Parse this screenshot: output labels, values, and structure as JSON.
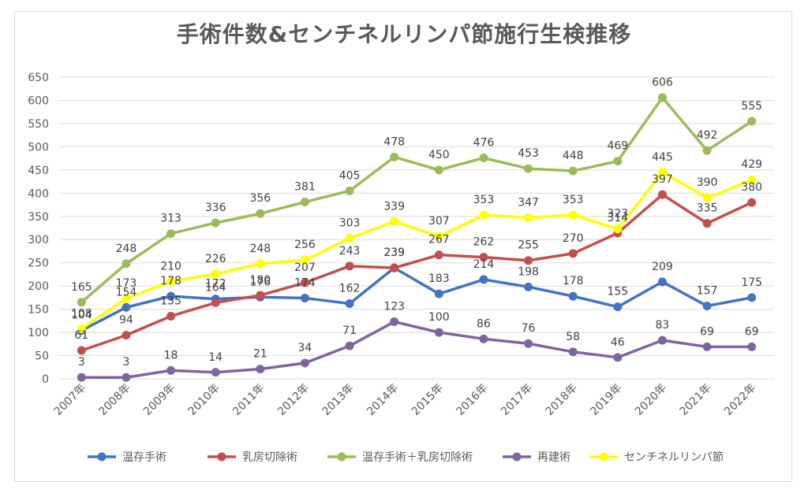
{
  "chart_data": {
    "type": "line",
    "title": "手術件数&センチネルリンパ節施行生検推移",
    "categories": [
      "2007年",
      "2008年",
      "2009年",
      "2010年",
      "2011年",
      "2012年",
      "2013年",
      "2014年",
      "2015年",
      "2016年",
      "2017年",
      "2018年",
      "2019年",
      "2020年",
      "2021年",
      "2022年"
    ],
    "ylim": [
      0,
      650
    ],
    "yticks": [
      0,
      50,
      100,
      150,
      200,
      250,
      300,
      350,
      400,
      450,
      500,
      550,
      600,
      650
    ],
    "grid": true,
    "legend_position": "bottom",
    "series": [
      {
        "name": "温存手術",
        "color": "#4472c4",
        "values": [
          104,
          154,
          178,
          172,
          176,
          174,
          162,
          239,
          183,
          214,
          198,
          178,
          155,
          209,
          157,
          175
        ]
      },
      {
        "name": "乳房切除術",
        "color": "#c0504d",
        "values": [
          61,
          94,
          135,
          164,
          180,
          207,
          243,
          239,
          267,
          262,
          255,
          270,
          314,
          397,
          335,
          380
        ]
      },
      {
        "name": "温存手術＋乳房切除術",
        "color": "#9bbb59",
        "values": [
          165,
          248,
          313,
          336,
          356,
          381,
          405,
          478,
          450,
          476,
          453,
          448,
          469,
          606,
          492,
          555
        ]
      },
      {
        "name": "再建術",
        "color": "#8064a2",
        "values": [
          3,
          3,
          18,
          14,
          21,
          34,
          71,
          123,
          100,
          86,
          76,
          58,
          46,
          83,
          69,
          69
        ]
      },
      {
        "name": "センチネルリンパ節",
        "color": "#ffff00",
        "values": [
          108,
          173,
          210,
          226,
          248,
          256,
          303,
          339,
          307,
          353,
          347,
          353,
          323,
          445,
          390,
          429
        ]
      }
    ]
  }
}
